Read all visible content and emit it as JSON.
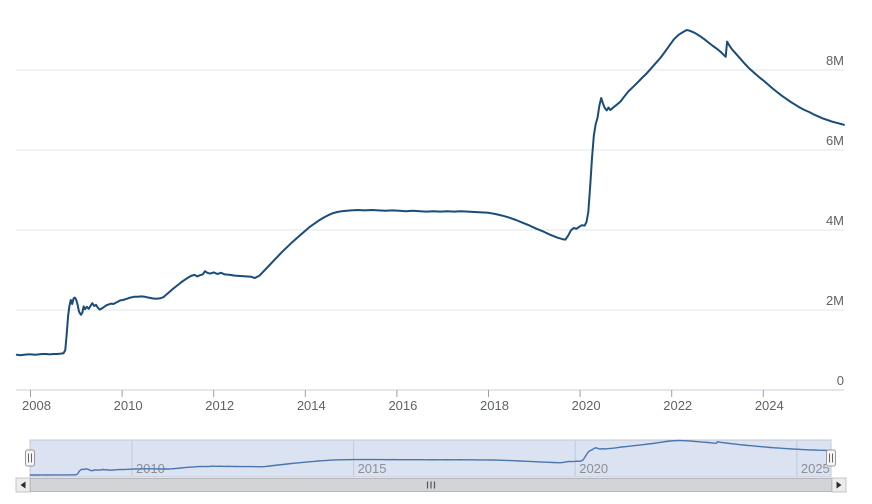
{
  "chart_data": {
    "type": "line",
    "title": "",
    "xlabel": "",
    "ylabel": "",
    "grid": true,
    "legend": false,
    "x_range": [
      2007.7,
      2025.77
    ],
    "y_range": [
      0,
      9.5
    ],
    "y_ticks": [
      {
        "value": 0,
        "label": "0"
      },
      {
        "value": 2,
        "label": "2M"
      },
      {
        "value": 4,
        "label": "4M"
      },
      {
        "value": 6,
        "label": "6M"
      },
      {
        "value": 8,
        "label": "8M"
      }
    ],
    "x_ticks": [
      {
        "value": 2008,
        "label": "2008"
      },
      {
        "value": 2010,
        "label": "2010"
      },
      {
        "value": 2012,
        "label": "2012"
      },
      {
        "value": 2014,
        "label": "2014"
      },
      {
        "value": 2016,
        "label": "2016"
      },
      {
        "value": 2018,
        "label": "2018"
      },
      {
        "value": 2020,
        "label": "2020"
      },
      {
        "value": 2022,
        "label": "2022"
      },
      {
        "value": 2024,
        "label": "2024"
      }
    ],
    "series": [
      {
        "points": [
          [
            2007.7,
            0.88
          ],
          [
            2007.78,
            0.87
          ],
          [
            2007.86,
            0.88
          ],
          [
            2007.94,
            0.89
          ],
          [
            2008.02,
            0.89
          ],
          [
            2008.1,
            0.88
          ],
          [
            2008.18,
            0.89
          ],
          [
            2008.26,
            0.9
          ],
          [
            2008.34,
            0.9
          ],
          [
            2008.42,
            0.89
          ],
          [
            2008.5,
            0.9
          ],
          [
            2008.58,
            0.9
          ],
          [
            2008.66,
            0.91
          ],
          [
            2008.72,
            0.92
          ],
          [
            2008.76,
            1.0
          ],
          [
            2008.79,
            1.4
          ],
          [
            2008.82,
            1.85
          ],
          [
            2008.85,
            2.1
          ],
          [
            2008.88,
            2.25
          ],
          [
            2008.91,
            2.15
          ],
          [
            2008.94,
            2.29
          ],
          [
            2008.97,
            2.31
          ],
          [
            2009.0,
            2.25
          ],
          [
            2009.03,
            2.12
          ],
          [
            2009.06,
            1.96
          ],
          [
            2009.1,
            1.88
          ],
          [
            2009.13,
            1.93
          ],
          [
            2009.16,
            2.09
          ],
          [
            2009.19,
            2.02
          ],
          [
            2009.23,
            2.08
          ],
          [
            2009.27,
            2.03
          ],
          [
            2009.31,
            2.1
          ],
          [
            2009.35,
            2.17
          ],
          [
            2009.39,
            2.1
          ],
          [
            2009.43,
            2.13
          ],
          [
            2009.47,
            2.06
          ],
          [
            2009.51,
            2.01
          ],
          [
            2009.56,
            2.04
          ],
          [
            2009.61,
            2.08
          ],
          [
            2009.66,
            2.12
          ],
          [
            2009.71,
            2.14
          ],
          [
            2009.76,
            2.16
          ],
          [
            2009.81,
            2.15
          ],
          [
            2009.86,
            2.18
          ],
          [
            2009.91,
            2.21
          ],
          [
            2009.96,
            2.24
          ],
          [
            2010.02,
            2.25
          ],
          [
            2010.1,
            2.28
          ],
          [
            2010.18,
            2.31
          ],
          [
            2010.26,
            2.33
          ],
          [
            2010.34,
            2.33
          ],
          [
            2010.42,
            2.34
          ],
          [
            2010.5,
            2.33
          ],
          [
            2010.58,
            2.31
          ],
          [
            2010.66,
            2.29
          ],
          [
            2010.74,
            2.28
          ],
          [
            2010.82,
            2.29
          ],
          [
            2010.9,
            2.32
          ],
          [
            2011.0,
            2.42
          ],
          [
            2011.1,
            2.52
          ],
          [
            2011.2,
            2.61
          ],
          [
            2011.3,
            2.7
          ],
          [
            2011.4,
            2.78
          ],
          [
            2011.5,
            2.85
          ],
          [
            2011.58,
            2.88
          ],
          [
            2011.64,
            2.84
          ],
          [
            2011.7,
            2.87
          ],
          [
            2011.76,
            2.89
          ],
          [
            2011.81,
            2.97
          ],
          [
            2011.86,
            2.93
          ],
          [
            2011.92,
            2.91
          ],
          [
            2012.0,
            2.94
          ],
          [
            2012.08,
            2.9
          ],
          [
            2012.16,
            2.93
          ],
          [
            2012.24,
            2.89
          ],
          [
            2012.34,
            2.88
          ],
          [
            2012.46,
            2.86
          ],
          [
            2012.58,
            2.85
          ],
          [
            2012.7,
            2.84
          ],
          [
            2012.82,
            2.83
          ],
          [
            2012.9,
            2.8
          ],
          [
            2013.0,
            2.86
          ],
          [
            2013.1,
            2.98
          ],
          [
            2013.2,
            3.1
          ],
          [
            2013.3,
            3.22
          ],
          [
            2013.4,
            3.34
          ],
          [
            2013.5,
            3.46
          ],
          [
            2013.6,
            3.57
          ],
          [
            2013.7,
            3.68
          ],
          [
            2013.8,
            3.78
          ],
          [
            2013.9,
            3.88
          ],
          [
            2014.0,
            3.98
          ],
          [
            2014.1,
            4.08
          ],
          [
            2014.2,
            4.16
          ],
          [
            2014.3,
            4.24
          ],
          [
            2014.4,
            4.31
          ],
          [
            2014.5,
            4.37
          ],
          [
            2014.6,
            4.42
          ],
          [
            2014.7,
            4.45
          ],
          [
            2014.8,
            4.47
          ],
          [
            2014.9,
            4.48
          ],
          [
            2015.0,
            4.49
          ],
          [
            2015.15,
            4.5
          ],
          [
            2015.3,
            4.49
          ],
          [
            2015.45,
            4.5
          ],
          [
            2015.6,
            4.49
          ],
          [
            2015.75,
            4.48
          ],
          [
            2015.9,
            4.49
          ],
          [
            2016.05,
            4.48
          ],
          [
            2016.2,
            4.47
          ],
          [
            2016.35,
            4.48
          ],
          [
            2016.5,
            4.47
          ],
          [
            2016.65,
            4.46
          ],
          [
            2016.8,
            4.47
          ],
          [
            2016.95,
            4.46
          ],
          [
            2017.1,
            4.47
          ],
          [
            2017.25,
            4.46
          ],
          [
            2017.4,
            4.47
          ],
          [
            2017.55,
            4.46
          ],
          [
            2017.7,
            4.45
          ],
          [
            2017.85,
            4.44
          ],
          [
            2018.0,
            4.43
          ],
          [
            2018.15,
            4.4
          ],
          [
            2018.3,
            4.36
          ],
          [
            2018.45,
            4.31
          ],
          [
            2018.6,
            4.25
          ],
          [
            2018.75,
            4.18
          ],
          [
            2018.9,
            4.11
          ],
          [
            2019.05,
            4.03
          ],
          [
            2019.2,
            3.96
          ],
          [
            2019.35,
            3.88
          ],
          [
            2019.5,
            3.81
          ],
          [
            2019.62,
            3.77
          ],
          [
            2019.68,
            3.76
          ],
          [
            2019.74,
            3.86
          ],
          [
            2019.8,
            3.99
          ],
          [
            2019.86,
            4.05
          ],
          [
            2019.92,
            4.03
          ],
          [
            2019.98,
            4.08
          ],
          [
            2020.04,
            4.12
          ],
          [
            2020.1,
            4.11
          ],
          [
            2020.14,
            4.2
          ],
          [
            2020.18,
            4.45
          ],
          [
            2020.22,
            5.1
          ],
          [
            2020.26,
            5.8
          ],
          [
            2020.3,
            6.35
          ],
          [
            2020.34,
            6.65
          ],
          [
            2020.38,
            6.8
          ],
          [
            2020.42,
            7.1
          ],
          [
            2020.46,
            7.3
          ],
          [
            2020.5,
            7.16
          ],
          [
            2020.54,
            7.05
          ],
          [
            2020.58,
            6.99
          ],
          [
            2020.62,
            7.06
          ],
          [
            2020.66,
            7.0
          ],
          [
            2020.72,
            7.06
          ],
          [
            2020.8,
            7.13
          ],
          [
            2020.88,
            7.21
          ],
          [
            2020.96,
            7.33
          ],
          [
            2021.05,
            7.46
          ],
          [
            2021.15,
            7.57
          ],
          [
            2021.25,
            7.68
          ],
          [
            2021.35,
            7.8
          ],
          [
            2021.45,
            7.91
          ],
          [
            2021.55,
            8.04
          ],
          [
            2021.65,
            8.17
          ],
          [
            2021.75,
            8.3
          ],
          [
            2021.85,
            8.45
          ],
          [
            2021.95,
            8.61
          ],
          [
            2022.05,
            8.77
          ],
          [
            2022.15,
            8.88
          ],
          [
            2022.25,
            8.95
          ],
          [
            2022.33,
            9.0
          ],
          [
            2022.4,
            8.98
          ],
          [
            2022.5,
            8.93
          ],
          [
            2022.6,
            8.86
          ],
          [
            2022.7,
            8.78
          ],
          [
            2022.8,
            8.69
          ],
          [
            2022.9,
            8.6
          ],
          [
            2023.0,
            8.52
          ],
          [
            2023.08,
            8.44
          ],
          [
            2023.15,
            8.36
          ],
          [
            2023.18,
            8.33
          ],
          [
            2023.21,
            8.71
          ],
          [
            2023.26,
            8.61
          ],
          [
            2023.32,
            8.51
          ],
          [
            2023.4,
            8.41
          ],
          [
            2023.5,
            8.28
          ],
          [
            2023.6,
            8.15
          ],
          [
            2023.7,
            8.03
          ],
          [
            2023.8,
            7.93
          ],
          [
            2023.9,
            7.83
          ],
          [
            2024.0,
            7.74
          ],
          [
            2024.1,
            7.64
          ],
          [
            2024.2,
            7.54
          ],
          [
            2024.3,
            7.45
          ],
          [
            2024.4,
            7.36
          ],
          [
            2024.5,
            7.28
          ],
          [
            2024.6,
            7.2
          ],
          [
            2024.7,
            7.13
          ],
          [
            2024.8,
            7.06
          ],
          [
            2024.9,
            7.0
          ],
          [
            2025.0,
            6.95
          ],
          [
            2025.1,
            6.89
          ],
          [
            2025.2,
            6.84
          ],
          [
            2025.3,
            6.79
          ],
          [
            2025.4,
            6.75
          ],
          [
            2025.5,
            6.71
          ],
          [
            2025.6,
            6.68
          ],
          [
            2025.7,
            6.65
          ],
          [
            2025.76,
            6.63
          ]
        ]
      }
    ]
  },
  "navigator": {
    "x_ticks": [
      {
        "value": 2010,
        "label": "2010"
      },
      {
        "value": 2015,
        "label": "2015"
      },
      {
        "value": 2020,
        "label": "2020"
      },
      {
        "value": 2025,
        "label": "2025"
      }
    ],
    "selected_range": [
      2007.7,
      2025.77
    ]
  },
  "icons": {
    "scroll_left": "left-triangle",
    "scroll_right": "right-triangle",
    "navigator_handle_grip": "two-vertical-bars",
    "scrollbar_grip": "three-vertical-bars"
  },
  "colors": {
    "series_line": "#1a4c7a",
    "grid_line": "#e6e6e6",
    "axis_line": "#c9ced8",
    "tick_mark": "#9aa0aa",
    "axis_label": "#5f6368",
    "navigator_mask": "#dbe2f2",
    "navigator_outline": "#c4c8d0",
    "navigator_grid": "#c0c9de",
    "navigator_series": "#4a76ad",
    "navigator_label": "#8b8f96",
    "handle_fill": "#f6f6f6",
    "handle_border": "#999999",
    "handle_grip": "#666666",
    "scrollbar_track": "#eaeaea",
    "scrollbar_thumb": "#d2d4d7",
    "scrollbar_thumb_border": "#b4b7bc",
    "scrollbar_button": "#ececec",
    "scrollbar_button_border": "#c4c4c4",
    "scrollbar_arrow": "#2b2b2b"
  }
}
